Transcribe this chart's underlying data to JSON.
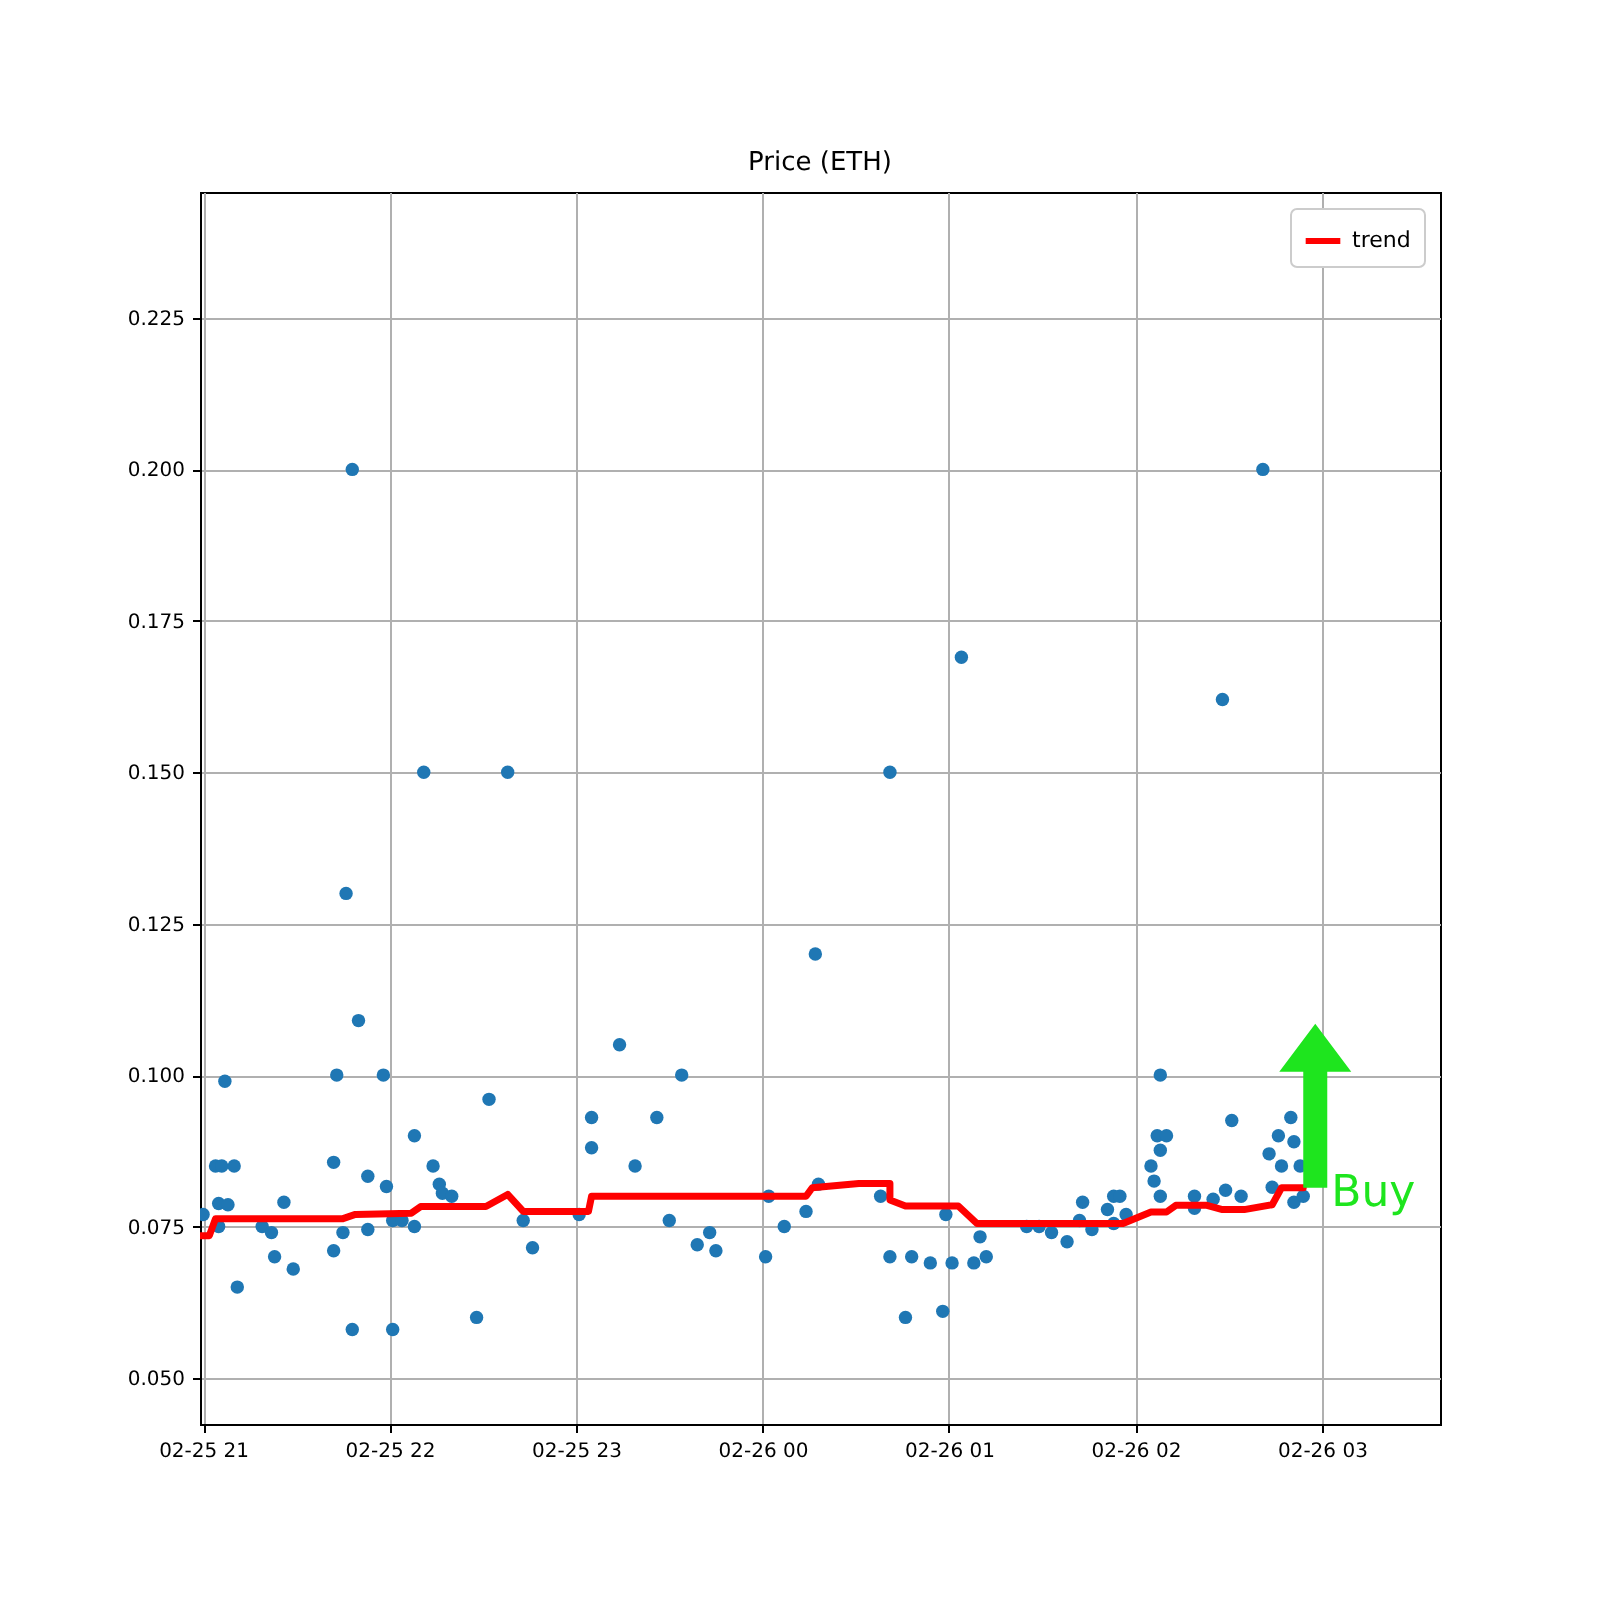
{
  "chart_data": {
    "type": "scatter",
    "title": "Price (ETH)",
    "grid": true,
    "legend": "top right",
    "xlim": [
      "--02-25T20:59",
      "--02-26T03:38"
    ],
    "ylim": [
      0.0424,
      0.2458
    ],
    "xticks": [
      {
        "value": "--02-25T21:00",
        "label": "02-25 21"
      },
      {
        "value": "--02-25T22:00",
        "label": "02-25 22"
      },
      {
        "value": "--02-25T23:00",
        "label": "02-25 23"
      },
      {
        "value": "--02-26T00:00",
        "label": "02-26 00"
      },
      {
        "value": "--02-26T01:00",
        "label": "02-26 01"
      },
      {
        "value": "--02-26T02:00",
        "label": "02-26 02"
      },
      {
        "value": "--02-26T03:00",
        "label": "02-26 03"
      }
    ],
    "yticks": [
      {
        "value": 0.05,
        "label": "0.050"
      },
      {
        "value": 0.075,
        "label": "0.075"
      },
      {
        "value": 0.1,
        "label": "0.100"
      },
      {
        "value": 0.125,
        "label": "0.125"
      },
      {
        "value": 0.15,
        "label": "0.150"
      },
      {
        "value": 0.175,
        "label": "0.175"
      },
      {
        "value": 0.2,
        "label": "0.200"
      },
      {
        "value": 0.225,
        "label": "0.225"
      }
    ],
    "annotations": [
      "Buy"
    ],
    "series": [
      {
        "color": "#1f77b4",
        "marker": "circle",
        "x": [
          "--02-25T21:00",
          "--02-25T21:04",
          "--02-25T21:05",
          "--02-25T21:05",
          "--02-25T21:06",
          "--02-25T21:07",
          "--02-25T21:08",
          "--02-25T21:10",
          "--02-25T21:11",
          "--02-25T21:19",
          "--02-25T21:22",
          "--02-25T21:23",
          "--02-25T21:26",
          "--02-25T21:29",
          "--02-25T21:42",
          "--02-25T21:43",
          "--02-25T21:42",
          "--02-25T21:45",
          "--02-25T21:46",
          "--02-25T21:48",
          "--02-25T21:48",
          "--02-25T21:50",
          "--02-25T21:53",
          "--02-25T21:53",
          "--02-25T21:58",
          "--02-25T21:59",
          "--02-25T22:01",
          "--02-25T22:01",
          "--02-25T22:04",
          "--02-25T22:08",
          "--02-25T22:08",
          "--02-25T22:11",
          "--02-25T22:14",
          "--02-25T22:16",
          "--02-25T22:17",
          "--02-25T22:20",
          "--02-25T22:28",
          "--02-25T22:32",
          "--02-25T22:38",
          "--02-25T22:43",
          "--02-25T22:46",
          "--02-25T23:01",
          "--02-25T23:05",
          "--02-25T23:05",
          "--02-25T23:14",
          "--02-25T23:19",
          "--02-25T23:26",
          "--02-25T23:30",
          "--02-25T23:34",
          "--02-25T23:39",
          "--02-25T23:43",
          "--02-25T23:45",
          "--02-26T00:01",
          "--02-26T00:02",
          "--02-26T00:07",
          "--02-26T00:14",
          "--02-26T00:17",
          "--02-26T00:18",
          "--02-26T00:38",
          "--02-26T00:41",
          "--02-26T00:41",
          "--02-26T00:46",
          "--02-26T00:48",
          "--02-26T00:54",
          "--02-26T00:58",
          "--02-26T00:59",
          "--02-26T01:01",
          "--02-26T01:04",
          "--02-26T01:08",
          "--02-26T01:10",
          "--02-26T01:12",
          "--02-26T01:25",
          "--02-26T01:29",
          "--02-26T01:33",
          "--02-26T01:38",
          "--02-26T01:42",
          "--02-26T01:43",
          "--02-26T01:46",
          "--02-26T01:51",
          "--02-26T01:53",
          "--02-26T01:53",
          "--02-26T01:55",
          "--02-26T01:57",
          "--02-26T02:05",
          "--02-26T02:06",
          "--02-26T02:07",
          "--02-26T02:08",
          "--02-26T02:08",
          "--02-26T02:08",
          "--02-26T02:10",
          "--02-26T02:19",
          "--02-26T02:19",
          "--02-26T02:25",
          "--02-26T02:28",
          "--02-26T02:29",
          "--02-26T02:31",
          "--02-26T02:34",
          "--02-26T02:41",
          "--02-26T02:43",
          "--02-26T02:44",
          "--02-26T02:46",
          "--02-26T02:47",
          "--02-26T02:50",
          "--02-26T02:51",
          "--02-26T02:51",
          "--02-26T02:53",
          "--02-26T02:54"
        ],
        "values": [
          0.077,
          0.085,
          0.075,
          0.0788,
          0.085,
          0.099,
          0.0786,
          0.085,
          0.065,
          0.075,
          0.074,
          0.07,
          0.079,
          0.068,
          0.0856,
          0.1,
          0.071,
          0.074,
          0.13,
          0.058,
          0.2,
          0.109,
          0.0745,
          0.0833,
          0.1,
          0.0816,
          0.058,
          0.076,
          0.076,
          0.075,
          0.09,
          0.15,
          0.085,
          0.082,
          0.0805,
          0.08,
          0.06,
          0.096,
          0.15,
          0.076,
          0.0715,
          0.077,
          0.093,
          0.088,
          0.105,
          0.085,
          0.093,
          0.076,
          0.1,
          0.072,
          0.074,
          0.071,
          0.07,
          0.08,
          0.075,
          0.0775,
          0.12,
          0.082,
          0.08,
          0.15,
          0.07,
          0.06,
          0.07,
          0.069,
          0.061,
          0.077,
          0.069,
          0.169,
          0.069,
          0.0733,
          0.07,
          0.075,
          0.075,
          0.074,
          0.0725,
          0.076,
          0.079,
          0.0745,
          0.0778,
          0.08,
          0.0755,
          0.08,
          0.077,
          0.085,
          0.0825,
          0.09,
          0.1,
          0.0876,
          0.08,
          0.09,
          0.08,
          0.078,
          0.0795,
          0.162,
          0.081,
          0.0925,
          0.08,
          0.2,
          0.087,
          0.0815,
          0.09,
          0.085,
          0.093,
          0.089,
          0.079,
          0.085,
          0.08
        ]
      },
      {
        "type": "line",
        "name": "trend",
        "color": "#ff0000",
        "marker": "none",
        "x": [
          "--02-25T20:59",
          "--02-25T21:02",
          "--02-25T21:04",
          "--02-25T21:45",
          "--02-25T21:49",
          "--02-25T22:07",
          "--02-25T22:10",
          "--02-25T22:31",
          "--02-25T22:38",
          "--02-25T22:43",
          "--02-25T23:04",
          "--02-25T23:05",
          "--02-26T00:14",
          "--02-26T00:16",
          "--02-26T00:31",
          "--02-26T00:41",
          "--02-26T00:41",
          "--02-26T00:46",
          "--02-26T01:03",
          "--02-26T01:09",
          "--02-26T01:56",
          "--02-26T02:05",
          "--02-26T02:10",
          "--02-26T02:13",
          "--02-26T02:23",
          "--02-26T02:28",
          "--02-26T02:35",
          "--02-26T02:44",
          "--02-26T02:47",
          "--02-26T02:54"
        ],
        "values": [
          0.0735,
          0.0735,
          0.0763,
          0.0763,
          0.077,
          0.0772,
          0.0783,
          0.0783,
          0.0803,
          0.0775,
          0.0775,
          0.08,
          0.08,
          0.0814,
          0.0821,
          0.0821,
          0.0794,
          0.0784,
          0.0784,
          0.0755,
          0.0755,
          0.0774,
          0.0774,
          0.0785,
          0.0785,
          0.0778,
          0.0778,
          0.0786,
          0.0814,
          0.0814
        ]
      }
    ]
  }
}
